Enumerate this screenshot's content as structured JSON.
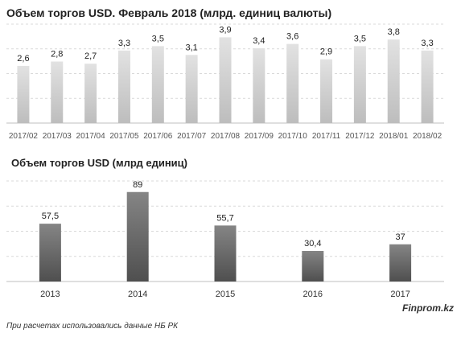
{
  "chart_data": [
    {
      "type": "bar",
      "title": "Объем торгов USD. Февраль 2018 (млрд. единиц валюты)",
      "categories": [
        "2017/02",
        "2017/03",
        "2017/04",
        "2017/05",
        "2017/06",
        "2017/07",
        "2017/08",
        "2017/09",
        "2017/10",
        "2017/11",
        "2017/12",
        "2018/01",
        "2018/02"
      ],
      "values": [
        2.6,
        2.8,
        2.7,
        3.3,
        3.5,
        3.1,
        3.9,
        3.4,
        3.6,
        2.9,
        3.5,
        3.8,
        3.3
      ],
      "labels": [
        "2,6",
        "2,8",
        "2,7",
        "3,3",
        "3,5",
        "3,1",
        "3,9",
        "3,4",
        "3,6",
        "2,9",
        "3,5",
        "3,8",
        "3,3"
      ],
      "ylim": [
        0,
        4.5
      ],
      "grid": true,
      "colors": {
        "bar": "#d3d3d3"
      }
    },
    {
      "type": "bar",
      "title": "Объем торгов USD (млрд единиц)",
      "categories": [
        "2013",
        "2014",
        "2015",
        "2016",
        "2017"
      ],
      "values": [
        57.5,
        89,
        55.7,
        30.4,
        37
      ],
      "labels": [
        "57,5",
        "89",
        "55,7",
        "30,4",
        "37"
      ],
      "ylim": [
        0,
        100
      ],
      "grid": true,
      "colors": {
        "bar_top": "#858585",
        "bar_bottom": "#4f4f4f"
      }
    }
  ],
  "footer": {
    "source": "При расчетах использовались данные НБ РК",
    "brand": "Finprom.kz"
  }
}
